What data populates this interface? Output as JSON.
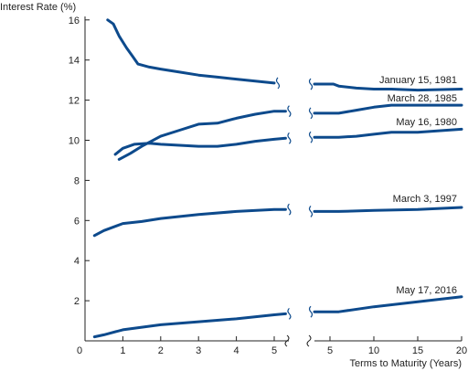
{
  "chart_data": {
    "type": "line",
    "title": "",
    "ylabel": "Interest Rate (%)",
    "xlabel": "Terms to Maturity (Years)",
    "ylim": [
      0,
      16
    ],
    "x_segments": [
      {
        "xlim": [
          0,
          5
        ],
        "ticks": [
          0,
          1,
          2,
          3,
          4,
          5
        ]
      },
      {
        "xlim": [
          5,
          20
        ],
        "ticks": [
          5,
          10,
          15,
          20
        ]
      }
    ],
    "yticks": [
      2,
      4,
      6,
      8,
      10,
      12,
      14,
      16
    ],
    "axis_break": true,
    "grid": false,
    "legend": "labels-at-right-end",
    "line_color": "#0d4a8c",
    "series": [
      {
        "name": "January 15, 1981",
        "points": [
          [
            0.6,
            16.0
          ],
          [
            0.75,
            15.8
          ],
          [
            0.9,
            15.2
          ],
          [
            1.1,
            14.6
          ],
          [
            1.25,
            14.2
          ],
          [
            1.4,
            13.8
          ],
          [
            1.7,
            13.65
          ],
          [
            2.0,
            13.55
          ],
          [
            2.5,
            13.4
          ],
          [
            3.0,
            13.25
          ],
          [
            3.5,
            13.15
          ],
          [
            4.0,
            13.05
          ],
          [
            4.5,
            12.95
          ],
          [
            5.0,
            12.85
          ],
          [
            5.5,
            12.8
          ],
          [
            6,
            12.7
          ],
          [
            8,
            12.6
          ],
          [
            10,
            12.55
          ],
          [
            12,
            12.55
          ],
          [
            15,
            12.5
          ],
          [
            20,
            12.55
          ]
        ]
      },
      {
        "name": "March 28, 1985",
        "points": [
          [
            0.9,
            9.05
          ],
          [
            1.2,
            9.35
          ],
          [
            1.5,
            9.7
          ],
          [
            2.0,
            10.2
          ],
          [
            2.5,
            10.5
          ],
          [
            3.0,
            10.8
          ],
          [
            3.5,
            10.85
          ],
          [
            4.0,
            11.1
          ],
          [
            4.5,
            11.3
          ],
          [
            5.0,
            11.45
          ],
          [
            5.3,
            11.45
          ],
          [
            6,
            11.35
          ],
          [
            8,
            11.5
          ],
          [
            10,
            11.65
          ],
          [
            12,
            11.75
          ],
          [
            15,
            11.75
          ],
          [
            20,
            11.75
          ]
        ]
      },
      {
        "name": "May 16, 1980",
        "points": [
          [
            0.8,
            9.3
          ],
          [
            1.0,
            9.6
          ],
          [
            1.3,
            9.8
          ],
          [
            1.7,
            9.85
          ],
          [
            2.0,
            9.8
          ],
          [
            2.5,
            9.75
          ],
          [
            3.0,
            9.7
          ],
          [
            3.5,
            9.7
          ],
          [
            4.0,
            9.8
          ],
          [
            4.5,
            9.95
          ],
          [
            5.0,
            10.05
          ],
          [
            5.3,
            10.1
          ],
          [
            6,
            10.15
          ],
          [
            8,
            10.2
          ],
          [
            10,
            10.3
          ],
          [
            12,
            10.4
          ],
          [
            15,
            10.4
          ],
          [
            20,
            10.55
          ]
        ]
      },
      {
        "name": "March 3, 1997",
        "points": [
          [
            0.25,
            5.25
          ],
          [
            0.5,
            5.5
          ],
          [
            1.0,
            5.85
          ],
          [
            1.5,
            5.95
          ],
          [
            2.0,
            6.1
          ],
          [
            3.0,
            6.3
          ],
          [
            4.0,
            6.45
          ],
          [
            5.0,
            6.55
          ],
          [
            5.3,
            6.55
          ],
          [
            6,
            6.45
          ],
          [
            10,
            6.5
          ],
          [
            15,
            6.55
          ],
          [
            20,
            6.65
          ]
        ]
      },
      {
        "name": "May 17, 2016",
        "points": [
          [
            0.25,
            0.2
          ],
          [
            0.5,
            0.3
          ],
          [
            1.0,
            0.55
          ],
          [
            2.0,
            0.8
          ],
          [
            3.0,
            0.95
          ],
          [
            4.0,
            1.1
          ],
          [
            5.0,
            1.3
          ],
          [
            5.3,
            1.35
          ],
          [
            6,
            1.45
          ],
          [
            10,
            1.7
          ],
          [
            15,
            1.95
          ],
          [
            20,
            2.2
          ]
        ]
      }
    ]
  }
}
